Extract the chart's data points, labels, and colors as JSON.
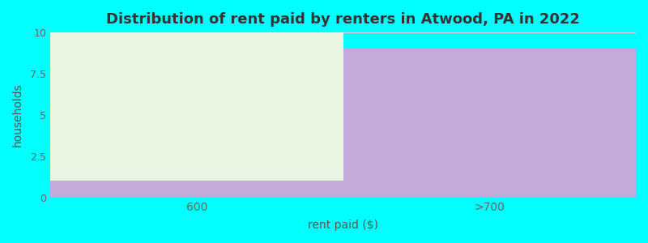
{
  "categories": [
    "600",
    ">700"
  ],
  "purple_values": [
    1,
    9
  ],
  "green_values": [
    9,
    0
  ],
  "purple_color": "#C4AADB",
  "green_color": "#E8F5E0",
  "background_color": "#00FFFF",
  "title": "Distribution of rent paid by renters in Atwood, PA in 2022",
  "xlabel": "rent paid ($)",
  "ylabel": "households",
  "ylim": [
    0,
    10
  ],
  "yticks": [
    0,
    2.5,
    5,
    7.5,
    10
  ],
  "title_fontsize": 13,
  "axis_label_fontsize": 10,
  "bar_edges": [
    0,
    1,
    2
  ],
  "bar_width": 1.0
}
